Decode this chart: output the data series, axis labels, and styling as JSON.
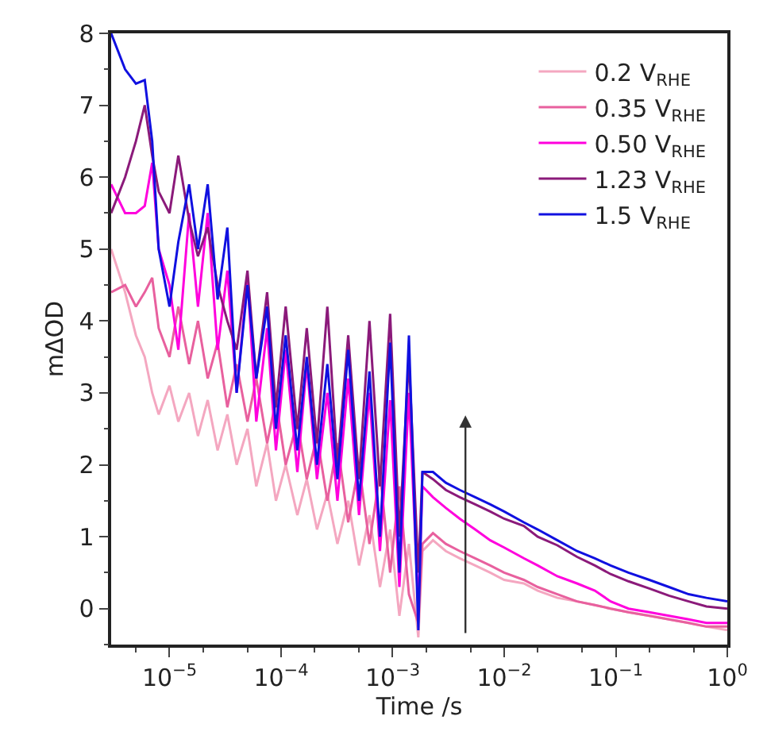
{
  "chart_data": {
    "type": "line",
    "xlabel": "Time /s",
    "ylabel": "mΔOD",
    "log": "x",
    "legend": "top right",
    "marker": "none",
    "line_style": "solid",
    "xlim": [
      3e-06,
      1.0
    ],
    "xticks": [
      {
        "value": 1e-05,
        "label": "10$^{−5}$"
      },
      {
        "value": 0.0001,
        "label": "10$^{−4}$"
      },
      {
        "value": 0.001,
        "label": "10$^{−3}$"
      },
      {
        "value": 0.01,
        "label": "10$^{−2}$"
      },
      {
        "value": 0.1,
        "label": "10$^{−1}$"
      },
      {
        "value": 1,
        "label": "10$^{0}$"
      }
    ],
    "ylim": [
      -0.5,
      8
    ],
    "yticks": [
      0,
      1,
      2,
      3,
      4,
      5,
      6,
      7,
      8
    ],
    "x": [
      3e-06,
      4e-06,
      5e-06,
      6e-06,
      7e-06,
      8e-06,
      1e-05,
      1.2e-05,
      1.5e-05,
      1.8e-05,
      2.2e-05,
      2.7e-05,
      3.3e-05,
      4e-05,
      5e-05,
      6e-05,
      7.5e-05,
      9e-05,
      0.00011,
      0.00014,
      0.00017,
      0.00021,
      0.00026,
      0.00032,
      0.0004,
      0.0005,
      0.00062,
      0.00077,
      0.00095,
      0.00115,
      0.0014,
      0.0017,
      0.00185,
      0.0023,
      0.003,
      0.004,
      0.0055,
      0.0075,
      0.01,
      0.015,
      0.02,
      0.03,
      0.045,
      0.065,
      0.09,
      0.13,
      0.2,
      0.3,
      0.45,
      0.65,
      1.0
    ],
    "series": [
      {
        "name": "0.2 V$_{RHE}$",
        "color": "#f4a7c0",
        "values": [
          5.0,
          4.4,
          3.8,
          3.5,
          3.0,
          2.7,
          3.1,
          2.6,
          3.0,
          2.4,
          2.9,
          2.2,
          2.7,
          2.0,
          2.5,
          1.7,
          2.3,
          1.5,
          2.0,
          1.3,
          1.8,
          1.1,
          1.6,
          0.9,
          1.5,
          0.6,
          1.3,
          0.3,
          1.1,
          -0.1,
          0.9,
          -0.4,
          0.8,
          0.95,
          0.8,
          0.7,
          0.6,
          0.5,
          0.4,
          0.35,
          0.25,
          0.15,
          0.1,
          0.05,
          0.0,
          -0.05,
          -0.1,
          -0.15,
          -0.2,
          -0.25,
          -0.3
        ]
      },
      {
        "name": "0.35 V$_{RHE}$",
        "color": "#e8609e",
        "values": [
          4.4,
          4.5,
          4.2,
          4.4,
          4.6,
          3.9,
          3.5,
          4.2,
          3.4,
          4.0,
          3.2,
          3.7,
          2.8,
          3.4,
          2.6,
          3.2,
          2.3,
          2.9,
          2.0,
          2.6,
          1.8,
          2.4,
          1.5,
          2.3,
          1.2,
          2.0,
          0.9,
          1.9,
          0.5,
          1.7,
          0.2,
          -0.2,
          0.9,
          1.05,
          0.9,
          0.8,
          0.7,
          0.6,
          0.5,
          0.4,
          0.3,
          0.2,
          0.1,
          0.05,
          0.0,
          -0.05,
          -0.1,
          -0.15,
          -0.2,
          -0.25,
          -0.25
        ]
      },
      {
        "name": "0.50 V$_{RHE}$",
        "color": "#ff00dd",
        "values": [
          5.9,
          5.5,
          5.5,
          5.6,
          6.2,
          5.0,
          4.5,
          3.6,
          5.5,
          4.2,
          5.5,
          3.6,
          4.7,
          3.0,
          4.6,
          2.6,
          3.9,
          2.2,
          3.6,
          1.9,
          3.4,
          1.8,
          3.0,
          1.5,
          3.2,
          1.3,
          3.0,
          0.8,
          2.9,
          0.3,
          3.0,
          0.0,
          1.7,
          1.55,
          1.4,
          1.25,
          1.1,
          0.95,
          0.85,
          0.7,
          0.6,
          0.45,
          0.35,
          0.25,
          0.1,
          0.0,
          -0.05,
          -0.1,
          -0.15,
          -0.2,
          -0.2
        ]
      },
      {
        "name": "1.23 V$_{RHE}$",
        "color": "#8b1a7a",
        "values": [
          5.5,
          6.0,
          6.5,
          7.0,
          6.3,
          5.8,
          5.5,
          6.3,
          5.4,
          4.9,
          5.3,
          4.5,
          4.0,
          3.6,
          4.7,
          3.2,
          4.4,
          2.8,
          4.2,
          2.5,
          3.9,
          2.3,
          4.2,
          2.0,
          3.8,
          1.8,
          4.0,
          1.7,
          4.1,
          1.0,
          3.5,
          0.5,
          1.9,
          1.8,
          1.65,
          1.55,
          1.45,
          1.35,
          1.25,
          1.15,
          1.0,
          0.88,
          0.72,
          0.6,
          0.48,
          0.38,
          0.28,
          0.18,
          0.1,
          0.03,
          0.0
        ]
      },
      {
        "name": "1.5 V$_{RHE}$",
        "color": "#1010e0",
        "values": [
          8.0,
          7.5,
          7.3,
          7.35,
          6.5,
          5.0,
          4.2,
          5.1,
          5.9,
          5.0,
          5.9,
          4.3,
          5.3,
          3.0,
          4.5,
          3.2,
          4.2,
          2.5,
          3.8,
          2.2,
          3.5,
          2.0,
          3.4,
          1.8,
          3.6,
          1.5,
          3.3,
          1.0,
          3.7,
          0.5,
          3.8,
          -0.3,
          1.9,
          1.9,
          1.75,
          1.65,
          1.55,
          1.45,
          1.35,
          1.2,
          1.1,
          0.95,
          0.8,
          0.7,
          0.6,
          0.5,
          0.4,
          0.3,
          0.2,
          0.15,
          0.1
        ]
      }
    ]
  }
}
